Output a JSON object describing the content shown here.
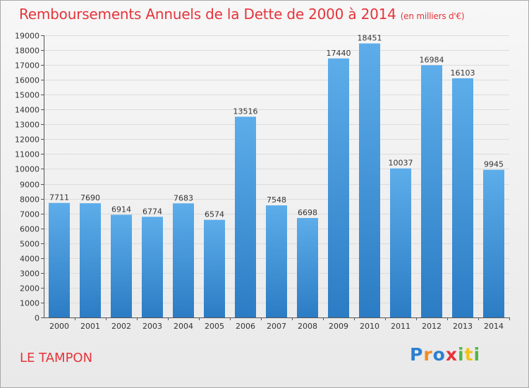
{
  "title": "Remboursements Annuels de la Dette de 2000 à 2014",
  "unit_label": "(en milliers d'€)",
  "location": "LE TAMPON",
  "logo": {
    "letters": [
      "P",
      "r",
      "o",
      "x",
      "i",
      "t",
      "i"
    ],
    "colors": [
      "#2b7fd0",
      "#f28b21",
      "#2b7fd0",
      "#e5343a",
      "#52b547",
      "#f2c318",
      "#52b547"
    ]
  },
  "colors": {
    "bar_top": "#5dadea",
    "bar_bottom": "#2b7cc4",
    "title": "#e5343a"
  },
  "chart_data": {
    "type": "bar",
    "title": "Remboursements Annuels de la Dette de 2000 à 2014",
    "xlabel": "",
    "ylabel": "",
    "ylim": [
      0,
      19000
    ],
    "ytick_step": 1000,
    "grid": true,
    "categories": [
      "2000",
      "2001",
      "2002",
      "2003",
      "2004",
      "2005",
      "2006",
      "2007",
      "2008",
      "2009",
      "2010",
      "2011",
      "2012",
      "2013",
      "2014"
    ],
    "values": [
      7711,
      7690,
      6914,
      6774,
      7683,
      6574,
      13516,
      7548,
      6698,
      17440,
      18451,
      10037,
      16984,
      16103,
      9945
    ]
  }
}
